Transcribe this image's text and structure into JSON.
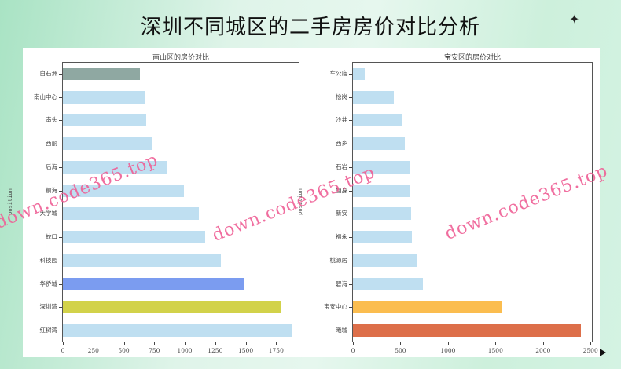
{
  "page": {
    "title": "深圳不同城区的二手房房价对比分析",
    "sparkle_icon": "✦",
    "watermark_text": "down.code365.top"
  },
  "chart_data": [
    {
      "type": "bar",
      "orientation": "horizontal",
      "title": "南山区的房价对比",
      "xlabel": "",
      "ylabel": "position",
      "categories": [
        "白石洲",
        "南山中心",
        "南头",
        "西丽",
        "后海",
        "前海",
        "大学城",
        "蛇口",
        "科技园",
        "华侨城",
        "深圳湾",
        "红树湾"
      ],
      "values": [
        635,
        673,
        686,
        737,
        853,
        994,
        1115,
        1167,
        1295,
        1481,
        1788,
        1878
      ],
      "colors": [
        "#8fa8a2",
        "#bfdff1",
        "#bfdff1",
        "#bfdff1",
        "#bfdff1",
        "#bfdff1",
        "#bfdff1",
        "#bfdff1",
        "#bfdff1",
        "#7b9cf0",
        "#d2d24a",
        "#bfdff1"
      ],
      "xticks": [
        "0",
        "250",
        "500",
        "750",
        "1000",
        "1250",
        "1500",
        "1750"
      ],
      "xlim": [
        0,
        1935
      ],
      "grid": false,
      "legend": "none"
    },
    {
      "type": "bar",
      "orientation": "horizontal",
      "title": "宝安区的房价对比",
      "xlabel": "",
      "ylabel": "position",
      "categories": [
        "车公庙",
        "松岗",
        "沙井",
        "西乡",
        "石岩",
        "翻身",
        "新安",
        "福永",
        "桃源居",
        "碧海",
        "宝安中心",
        "曦城"
      ],
      "values": [
        123,
        427,
        518,
        550,
        592,
        608,
        616,
        624,
        682,
        740,
        1561,
        2399
      ],
      "colors": [
        "#bfdff1",
        "#bfdff1",
        "#bfdff1",
        "#bfdff1",
        "#bfdff1",
        "#bfdff1",
        "#bfdff1",
        "#bfdff1",
        "#bfdff1",
        "#bfdff1",
        "#fbbd4f",
        "#dd6f4a"
      ],
      "xticks": [
        "0",
        "500",
        "1000",
        "1500",
        "2000",
        "2500"
      ],
      "xlim": [
        0,
        2515
      ],
      "grid": false,
      "legend": "none"
    }
  ]
}
